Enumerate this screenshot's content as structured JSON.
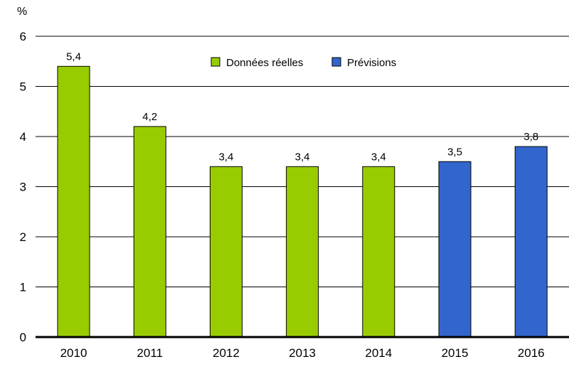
{
  "chart_data": {
    "type": "bar",
    "ylabel": "%",
    "ylim": [
      0,
      6
    ],
    "yticks": [
      "0",
      "1",
      "2",
      "3",
      "4",
      "5",
      "6"
    ],
    "grid": true,
    "legend_position": "top-center",
    "categories": [
      "2010",
      "2011",
      "2012",
      "2013",
      "2014",
      "2015",
      "2016"
    ],
    "values": [
      5.4,
      4.2,
      3.4,
      3.4,
      3.4,
      3.5,
      3.8
    ],
    "value_labels": [
      "5,4",
      "4,2",
      "3,4",
      "3,4",
      "3,4",
      "3,5",
      "3,8"
    ],
    "bar_series": [
      0,
      0,
      0,
      0,
      0,
      1,
      1
    ],
    "series": [
      {
        "name": "Données réelles",
        "color": "#99cc00"
      },
      {
        "name": "Prévisions",
        "color": "#3366cc"
      }
    ]
  }
}
